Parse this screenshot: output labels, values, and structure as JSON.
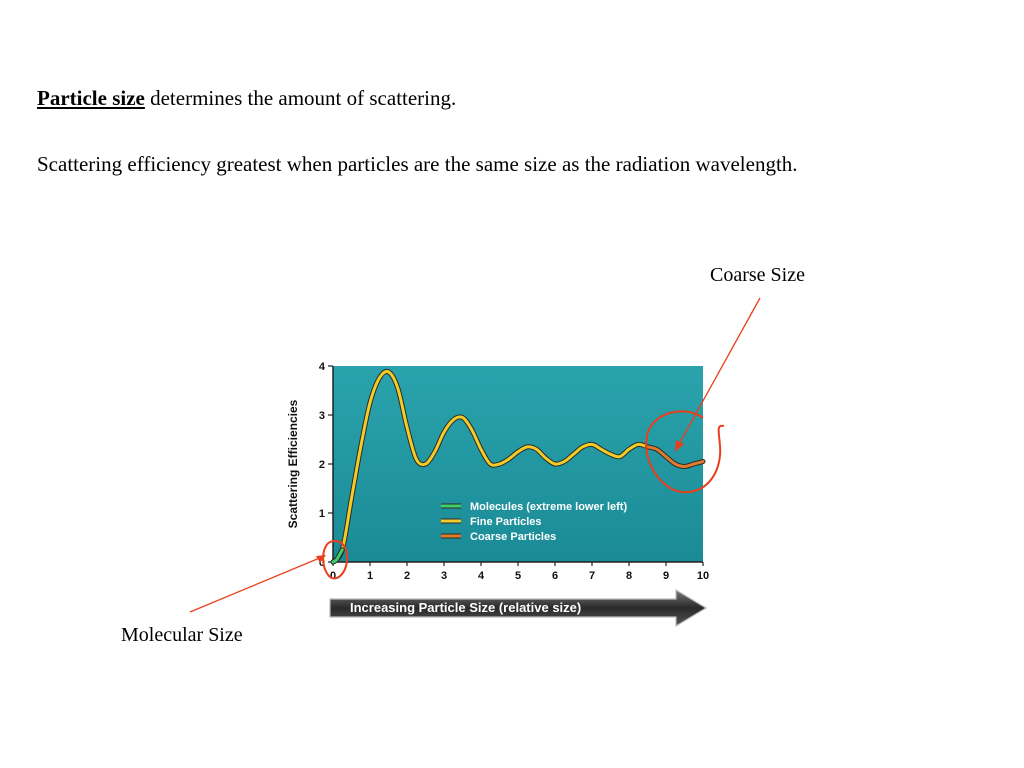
{
  "text": {
    "keyword": "Particle size",
    "line1_rest": " determines the amount of scattering.",
    "line2": "Scattering efficiency greatest when particles are the same size as the radiation wavelength."
  },
  "annotations": {
    "coarse": "Coarse Size",
    "molecular": "Molecular Size",
    "color": "#e8401c"
  },
  "chart_data": {
    "type": "line",
    "ylabel": "Scattering Efficiencies",
    "xlabel": "Increasing Particle Size (relative size)",
    "xlim": [
      0,
      10
    ],
    "ylim": [
      0,
      4
    ],
    "x_ticks": [
      "0",
      "1",
      "2",
      "3",
      "4",
      "5",
      "6",
      "7",
      "8",
      "9",
      "10"
    ],
    "y_ticks": [
      "0",
      "1",
      "2",
      "3",
      "4"
    ],
    "background": "#1a8b96",
    "series": [
      {
        "name": "Molecules (extreme lower left)",
        "color": "#3fd06a",
        "x": [
          0,
          0.1,
          0.25
        ],
        "y": [
          0,
          0.05,
          0.25
        ]
      },
      {
        "name": "Fine Particles",
        "color": "#f2cc28",
        "x": [
          0,
          0.25,
          0.5,
          0.75,
          1.0,
          1.25,
          1.5,
          1.75,
          2.0,
          2.25,
          2.5,
          2.75,
          3.0,
          3.25,
          3.5,
          3.75,
          4.0,
          4.25,
          4.5,
          4.75,
          5.0,
          5.25,
          5.5,
          5.75,
          6.0,
          6.25,
          6.5,
          6.75,
          7.0,
          7.25,
          7.5,
          7.75,
          8.0,
          8.25,
          8.5
        ],
        "y": [
          0,
          0.25,
          1.3,
          2.35,
          3.25,
          3.75,
          3.88,
          3.55,
          2.75,
          2.1,
          2.0,
          2.25,
          2.65,
          2.9,
          2.95,
          2.7,
          2.3,
          2.0,
          2.0,
          2.1,
          2.25,
          2.35,
          2.3,
          2.12,
          2.0,
          2.05,
          2.2,
          2.35,
          2.4,
          2.3,
          2.2,
          2.15,
          2.3,
          2.4,
          2.35
        ]
      },
      {
        "name": "Coarse Particles",
        "color": "#e07a2c",
        "x": [
          8.5,
          8.75,
          9.0,
          9.25,
          9.5,
          9.75,
          10.0
        ],
        "y": [
          2.35,
          2.3,
          2.15,
          2.0,
          1.95,
          2.0,
          2.05
        ]
      }
    ]
  }
}
